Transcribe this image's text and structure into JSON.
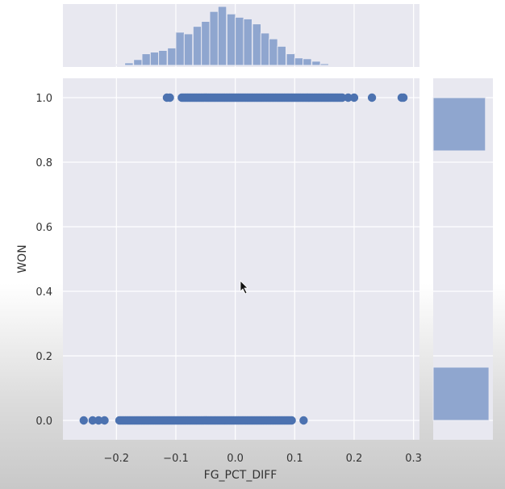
{
  "chart_data": {
    "type": "scatter",
    "title": "",
    "xlabel": "FG_PCT_DIFF",
    "ylabel": "WON",
    "xlim": [
      -0.29,
      0.31
    ],
    "ylim": [
      -0.06,
      1.06
    ],
    "x_ticks": [
      "-0.2",
      "-0.1",
      "0.0",
      "0.1",
      "0.2",
      "0.3"
    ],
    "y_ticks": [
      "0.0",
      "0.2",
      "0.4",
      "0.6",
      "0.8",
      "1.0"
    ],
    "grid": true,
    "series": [
      {
        "y": 1.0,
        "x_range": [
          -0.09,
          0.18
        ],
        "x_outliers": [
          -0.115,
          -0.11,
          0.19,
          0.2,
          0.23,
          0.28,
          0.283
        ]
      },
      {
        "y": 0.0,
        "x_range": [
          -0.195,
          0.095
        ],
        "x_outliers": [
          -0.255,
          -0.24,
          -0.23,
          -0.22,
          0.115
        ]
      }
    ],
    "marginal_x_histogram": {
      "bin_width": 0.0143,
      "bins": [
        {
          "x0": -0.2,
          "count": 1
        },
        {
          "x0": -0.186,
          "count": 3
        },
        {
          "x0": -0.171,
          "count": 7
        },
        {
          "x0": -0.157,
          "count": 14
        },
        {
          "x0": -0.143,
          "count": 16
        },
        {
          "x0": -0.129,
          "count": 18
        },
        {
          "x0": -0.114,
          "count": 21
        },
        {
          "x0": -0.1,
          "count": 40
        },
        {
          "x0": -0.086,
          "count": 38
        },
        {
          "x0": -0.071,
          "count": 47
        },
        {
          "x0": -0.057,
          "count": 53
        },
        {
          "x0": -0.043,
          "count": 65
        },
        {
          "x0": -0.029,
          "count": 71
        },
        {
          "x0": -0.014,
          "count": 62
        },
        {
          "x0": 0.0,
          "count": 58
        },
        {
          "x0": 0.014,
          "count": 56
        },
        {
          "x0": 0.029,
          "count": 50
        },
        {
          "x0": 0.043,
          "count": 39
        },
        {
          "x0": 0.057,
          "count": 32
        },
        {
          "x0": 0.071,
          "count": 23
        },
        {
          "x0": 0.086,
          "count": 14
        },
        {
          "x0": 0.1,
          "count": 9
        },
        {
          "x0": 0.114,
          "count": 8
        },
        {
          "x0": 0.129,
          "count": 5
        },
        {
          "x0": 0.143,
          "count": 2
        }
      ]
    },
    "marginal_y_histogram": {
      "bins": [
        {
          "y0": 0.0,
          "y1": 0.165,
          "count": 0.96
        },
        {
          "y0": 0.835,
          "y1": 1.0,
          "count": 0.9
        }
      ]
    },
    "colors": {
      "scatter": "#4c72b0",
      "hist": "#8fa6cf",
      "hist_edge": "#eaeaf2",
      "panel_bg": "#eaeaf2",
      "grid": "#ffffff"
    }
  }
}
